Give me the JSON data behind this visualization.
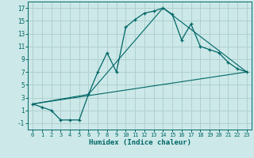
{
  "title": "",
  "xlabel": "Humidex (Indice chaleur)",
  "bg_color": "#cce8e8",
  "grid_color": "#b0d0d0",
  "line_color": "#006666",
  "xlim": [
    -0.5,
    23.5
  ],
  "ylim": [
    -2.0,
    18.0
  ],
  "xticks": [
    0,
    1,
    2,
    3,
    4,
    5,
    6,
    7,
    8,
    9,
    10,
    11,
    12,
    13,
    14,
    15,
    16,
    17,
    18,
    19,
    20,
    21,
    22,
    23
  ],
  "yticks": [
    -1,
    1,
    3,
    5,
    7,
    9,
    11,
    13,
    15,
    17
  ],
  "curve_x": [
    0,
    1,
    2,
    3,
    4,
    5,
    6,
    7,
    8,
    9,
    10,
    11,
    12,
    13,
    14,
    15,
    16,
    17,
    18,
    19,
    20,
    21,
    22,
    23
  ],
  "curve_y": [
    2,
    1.5,
    1,
    -0.5,
    -0.5,
    -0.5,
    3.5,
    7,
    10,
    7,
    14,
    15.2,
    16.2,
    16.5,
    17,
    16,
    12,
    14.5,
    11,
    10.5,
    10,
    8.5,
    7.5,
    7
  ],
  "line2_x": [
    0,
    23
  ],
  "line2_y": [
    2,
    7
  ],
  "line3_x": [
    0,
    6,
    14,
    23
  ],
  "line3_y": [
    2,
    3.5,
    17,
    7
  ]
}
